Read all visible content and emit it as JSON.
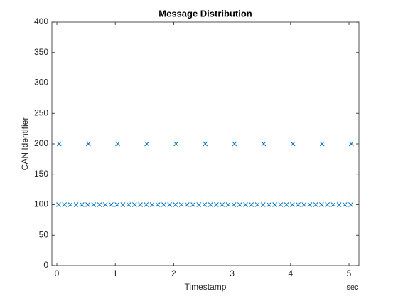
{
  "chart_data": {
    "type": "scatter",
    "title": "Message Distribution",
    "x_label": "Timestamp",
    "y_label": "CAN Identifier",
    "x_unit": "sec",
    "color": "#0072bd",
    "marker": "x",
    "x": [
      0.03,
      0.13,
      0.23,
      0.33,
      0.43,
      0.53,
      0.63,
      0.73,
      0.83,
      0.93,
      1.03,
      1.13,
      1.23,
      1.33,
      1.43,
      1.53,
      1.63,
      1.73,
      1.83,
      1.93,
      2.03,
      2.13,
      2.23,
      2.33,
      2.43,
      2.53,
      2.63,
      2.73,
      2.83,
      2.93,
      3.03,
      3.13,
      3.23,
      3.33,
      3.43,
      3.53,
      3.63,
      3.73,
      3.83,
      3.93,
      4.03,
      4.13,
      4.23,
      4.33,
      4.43,
      4.53,
      4.63,
      4.73,
      4.83,
      4.93,
      5.03,
      0.04,
      0.54,
      1.04,
      1.54,
      2.04,
      2.54,
      3.04,
      3.54,
      4.04,
      4.54,
      5.04
    ],
    "values": [
      100,
      100,
      100,
      100,
      100,
      100,
      100,
      100,
      100,
      100,
      100,
      100,
      100,
      100,
      100,
      100,
      100,
      100,
      100,
      100,
      100,
      100,
      100,
      100,
      100,
      100,
      100,
      100,
      100,
      100,
      100,
      100,
      100,
      100,
      100,
      100,
      100,
      100,
      100,
      100,
      100,
      100,
      100,
      100,
      100,
      100,
      100,
      100,
      100,
      100,
      100,
      200,
      200,
      200,
      200,
      200,
      200,
      200,
      200,
      200,
      200,
      200
    ],
    "xlim": [
      -0.085,
      5.17
    ],
    "xticks": [
      0,
      1,
      2,
      3,
      4,
      5
    ],
    "ylim": [
      0,
      400
    ],
    "yticks": [
      0,
      50,
      100,
      150,
      200,
      250,
      300,
      350,
      400
    ]
  }
}
